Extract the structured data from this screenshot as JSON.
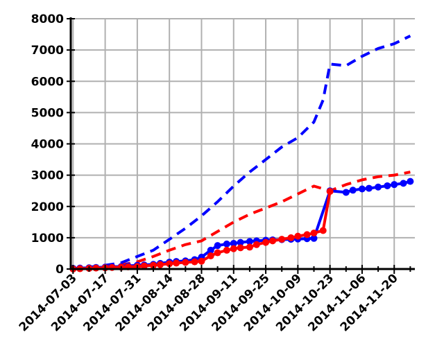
{
  "chart_data": {
    "type": "line",
    "title": "",
    "xlabel": "",
    "ylabel": "",
    "x_axis_type": "date",
    "xlim": [
      "2014-07-02",
      "2014-11-29"
    ],
    "ylim": [
      0,
      8000
    ],
    "grid": true,
    "legend": "none",
    "y_ticks": [
      {
        "value": 0,
        "label": "0"
      },
      {
        "value": 1000,
        "label": "1000"
      },
      {
        "value": 2000,
        "label": "2000"
      },
      {
        "value": 3000,
        "label": "3000"
      },
      {
        "value": 4000,
        "label": "4000"
      },
      {
        "value": 5000,
        "label": "5000"
      },
      {
        "value": 6000,
        "label": "6000"
      },
      {
        "value": 7000,
        "label": "7000"
      },
      {
        "value": 8000,
        "label": "8000"
      }
    ],
    "x_ticks": [
      {
        "value": "2014-07-03",
        "label": "2014-07-03"
      },
      {
        "value": "2014-07-17",
        "label": "2014-07-17"
      },
      {
        "value": "2014-07-31",
        "label": "2014-07-31"
      },
      {
        "value": "2014-08-14",
        "label": "2014-08-14"
      },
      {
        "value": "2014-08-28",
        "label": "2014-08-28"
      },
      {
        "value": "2014-09-11",
        "label": "2014-09-11"
      },
      {
        "value": "2014-09-25",
        "label": "2014-09-25"
      },
      {
        "value": "2014-10-09",
        "label": "2014-10-09"
      },
      {
        "value": "2014-10-23",
        "label": "2014-10-23"
      },
      {
        "value": "2014-11-06",
        "label": "2014-11-06"
      },
      {
        "value": "2014-11-20",
        "label": "2014-11-20"
      }
    ],
    "series": [
      {
        "color": "#0000ff",
        "style": "dashed",
        "markers": false,
        "points": [
          [
            "2014-07-03",
            0
          ],
          [
            "2014-07-10",
            60
          ],
          [
            "2014-07-17",
            120
          ],
          [
            "2014-07-24",
            200
          ],
          [
            "2014-07-31",
            400
          ],
          [
            "2014-08-07",
            600
          ],
          [
            "2014-08-14",
            950
          ],
          [
            "2014-08-21",
            1300
          ],
          [
            "2014-08-28",
            1700
          ],
          [
            "2014-09-04",
            2150
          ],
          [
            "2014-09-11",
            2650
          ],
          [
            "2014-09-18",
            3100
          ],
          [
            "2014-09-25",
            3500
          ],
          [
            "2014-10-02",
            3900
          ],
          [
            "2014-10-09",
            4200
          ],
          [
            "2014-10-16",
            4700
          ],
          [
            "2014-10-20",
            5400
          ],
          [
            "2014-10-23",
            6550
          ],
          [
            "2014-10-30",
            6500
          ],
          [
            "2014-11-06",
            6800
          ],
          [
            "2014-11-13",
            7050
          ],
          [
            "2014-11-20",
            7200
          ],
          [
            "2014-11-27",
            7450
          ]
        ]
      },
      {
        "color": "#ff0000",
        "style": "dashed",
        "markers": false,
        "points": [
          [
            "2014-07-03",
            0
          ],
          [
            "2014-07-10",
            30
          ],
          [
            "2014-07-17",
            80
          ],
          [
            "2014-07-24",
            130
          ],
          [
            "2014-07-31",
            230
          ],
          [
            "2014-08-07",
            400
          ],
          [
            "2014-08-14",
            600
          ],
          [
            "2014-08-21",
            780
          ],
          [
            "2014-08-28",
            900
          ],
          [
            "2014-09-04",
            1200
          ],
          [
            "2014-09-11",
            1500
          ],
          [
            "2014-09-18",
            1750
          ],
          [
            "2014-09-25",
            1950
          ],
          [
            "2014-10-02",
            2150
          ],
          [
            "2014-10-09",
            2400
          ],
          [
            "2014-10-16",
            2650
          ],
          [
            "2014-10-23",
            2500
          ],
          [
            "2014-10-30",
            2700
          ],
          [
            "2014-11-06",
            2850
          ],
          [
            "2014-11-13",
            2950
          ],
          [
            "2014-11-20",
            3000
          ],
          [
            "2014-11-27",
            3100
          ]
        ]
      },
      {
        "color": "#0000ff",
        "style": "solid",
        "markers": true,
        "points": [
          [
            "2014-07-03",
            20
          ],
          [
            "2014-07-06",
            30
          ],
          [
            "2014-07-10",
            40
          ],
          [
            "2014-07-13",
            50
          ],
          [
            "2014-07-17",
            60
          ],
          [
            "2014-07-20",
            70
          ],
          [
            "2014-07-24",
            80
          ],
          [
            "2014-07-27",
            100
          ],
          [
            "2014-07-31",
            120
          ],
          [
            "2014-08-03",
            130
          ],
          [
            "2014-08-07",
            150
          ],
          [
            "2014-08-10",
            180
          ],
          [
            "2014-08-14",
            220
          ],
          [
            "2014-08-17",
            240
          ],
          [
            "2014-08-21",
            260
          ],
          [
            "2014-08-25",
            300
          ],
          [
            "2014-08-28",
            380
          ],
          [
            "2014-09-01",
            600
          ],
          [
            "2014-09-04",
            750
          ],
          [
            "2014-09-08",
            800
          ],
          [
            "2014-09-11",
            820
          ],
          [
            "2014-09-14",
            850
          ],
          [
            "2014-09-18",
            880
          ],
          [
            "2014-09-21",
            900
          ],
          [
            "2014-09-25",
            920
          ],
          [
            "2014-09-28",
            930
          ],
          [
            "2014-10-02",
            940
          ],
          [
            "2014-10-06",
            950
          ],
          [
            "2014-10-09",
            960
          ],
          [
            "2014-10-13",
            970
          ],
          [
            "2014-10-16",
            980
          ],
          [
            "2014-10-23",
            2500
          ],
          [
            "2014-10-30",
            2450
          ],
          [
            "2014-11-02",
            2520
          ],
          [
            "2014-11-06",
            2560
          ],
          [
            "2014-11-09",
            2580
          ],
          [
            "2014-11-13",
            2620
          ],
          [
            "2014-11-17",
            2660
          ],
          [
            "2014-11-20",
            2700
          ],
          [
            "2014-11-24",
            2740
          ],
          [
            "2014-11-27",
            2800
          ]
        ]
      },
      {
        "color": "#ff0000",
        "style": "solid",
        "markers": true,
        "points": [
          [
            "2014-07-03",
            0
          ],
          [
            "2014-07-06",
            10
          ],
          [
            "2014-07-10",
            20
          ],
          [
            "2014-07-13",
            30
          ],
          [
            "2014-07-17",
            40
          ],
          [
            "2014-07-20",
            50
          ],
          [
            "2014-07-24",
            60
          ],
          [
            "2014-07-27",
            70
          ],
          [
            "2014-07-31",
            80
          ],
          [
            "2014-08-03",
            100
          ],
          [
            "2014-08-07",
            120
          ],
          [
            "2014-08-10",
            140
          ],
          [
            "2014-08-14",
            170
          ],
          [
            "2014-08-17",
            190
          ],
          [
            "2014-08-21",
            210
          ],
          [
            "2014-08-25",
            230
          ],
          [
            "2014-08-28",
            250
          ],
          [
            "2014-09-01",
            420
          ],
          [
            "2014-09-04",
            520
          ],
          [
            "2014-09-08",
            600
          ],
          [
            "2014-09-11",
            650
          ],
          [
            "2014-09-14",
            680
          ],
          [
            "2014-09-18",
            700
          ],
          [
            "2014-09-21",
            780
          ],
          [
            "2014-09-25",
            850
          ],
          [
            "2014-09-28",
            900
          ],
          [
            "2014-10-02",
            950
          ],
          [
            "2014-10-06",
            1000
          ],
          [
            "2014-10-09",
            1050
          ],
          [
            "2014-10-13",
            1100
          ],
          [
            "2014-10-16",
            1150
          ],
          [
            "2014-10-20",
            1230
          ],
          [
            "2014-10-23",
            2480
          ]
        ]
      }
    ]
  }
}
